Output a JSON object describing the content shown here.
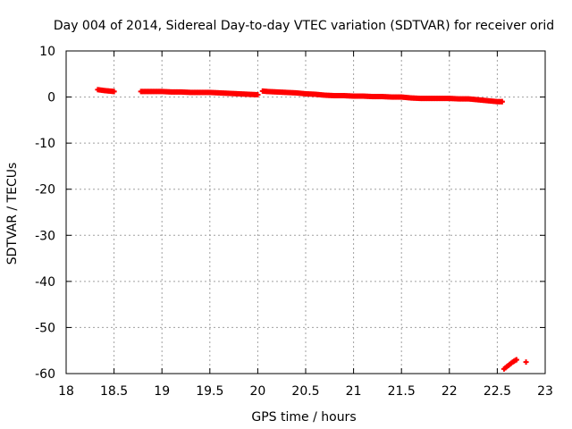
{
  "chart_data": {
    "type": "scatter",
    "title": "Day 004 of 2014, Sidereal Day-to-day VTEC variation (SDTVAR) for receiver orid",
    "xlabel": "GPS time / hours",
    "ylabel": "SDTVAR / TECUs",
    "xlim": [
      18,
      23
    ],
    "ylim": [
      -60,
      10
    ],
    "xticks": [
      18,
      18.5,
      19,
      19.5,
      20,
      20.5,
      21,
      21.5,
      22,
      22.5,
      23
    ],
    "xtick_labels": [
      "18",
      "18.5",
      "19",
      "19.5",
      "20",
      "20.5",
      "21",
      "21.5",
      "22",
      "22.5",
      "23"
    ],
    "yticks": [
      10,
      0,
      -10,
      -20,
      -30,
      -40,
      -50,
      -60
    ],
    "ytick_labels": [
      "10",
      "0",
      "-10",
      "-20",
      "-30",
      "-40",
      "-50",
      "-60"
    ],
    "grid": true,
    "marker": "plus",
    "series": [
      {
        "name": "SDTVAR",
        "color": "#ff0000",
        "segments": [
          [
            [
              18.33,
              1.6
            ],
            [
              18.4,
              1.4
            ],
            [
              18.45,
              1.3
            ],
            [
              18.5,
              1.2
            ]
          ],
          [
            [
              18.78,
              1.2
            ],
            [
              18.9,
              1.2
            ],
            [
              19.0,
              1.2
            ],
            [
              19.1,
              1.1
            ],
            [
              19.2,
              1.1
            ],
            [
              19.3,
              1.0
            ],
            [
              19.4,
              1.0
            ],
            [
              19.5,
              1.0
            ],
            [
              19.6,
              0.9
            ],
            [
              19.7,
              0.8
            ],
            [
              19.8,
              0.7
            ],
            [
              19.9,
              0.6
            ],
            [
              20.0,
              0.5
            ]
          ],
          [
            [
              20.05,
              1.3
            ],
            [
              20.1,
              1.2
            ],
            [
              20.2,
              1.1
            ],
            [
              20.3,
              1.0
            ],
            [
              20.4,
              0.9
            ],
            [
              20.5,
              0.7
            ],
            [
              20.6,
              0.6
            ],
            [
              20.7,
              0.4
            ],
            [
              20.8,
              0.3
            ],
            [
              20.9,
              0.3
            ],
            [
              21.0,
              0.2
            ],
            [
              21.1,
              0.2
            ],
            [
              21.2,
              0.1
            ],
            [
              21.3,
              0.1
            ],
            [
              21.4,
              0.0
            ],
            [
              21.5,
              0.0
            ],
            [
              21.6,
              -0.2
            ],
            [
              21.7,
              -0.3
            ],
            [
              21.8,
              -0.3
            ],
            [
              21.9,
              -0.3
            ],
            [
              22.0,
              -0.3
            ],
            [
              22.1,
              -0.4
            ],
            [
              22.2,
              -0.4
            ],
            [
              22.3,
              -0.6
            ],
            [
              22.4,
              -0.8
            ],
            [
              22.5,
              -1.0
            ],
            [
              22.55,
              -1.0
            ]
          ],
          [
            [
              22.57,
              -59.0
            ],
            [
              22.6,
              -58.5
            ],
            [
              22.63,
              -58.0
            ],
            [
              22.66,
              -57.5
            ],
            [
              22.7,
              -57.0
            ]
          ],
          [
            [
              22.8,
              -57.5
            ]
          ]
        ]
      }
    ]
  }
}
